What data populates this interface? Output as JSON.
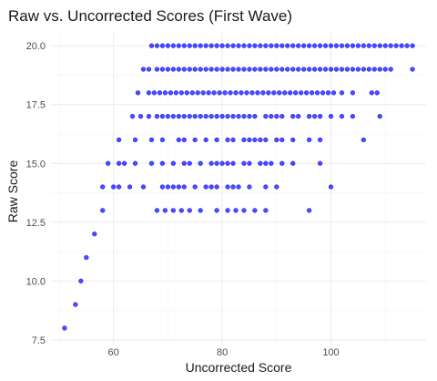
{
  "chart_data": {
    "type": "scatter",
    "title": "Raw vs. Uncorrected Scores (First Wave)",
    "xlabel": "Uncorrected Score",
    "ylabel": "Raw Score",
    "xlim": [
      48.5,
      117.5
    ],
    "ylim": [
      7.3,
      20.55
    ],
    "x_ticks": [
      60,
      80,
      100
    ],
    "y_ticks": [
      7.5,
      10.0,
      12.5,
      15.0,
      17.5,
      20.0
    ],
    "y_tick_labels": [
      "7.5",
      "10.0",
      "12.5",
      "15.0",
      "17.5",
      "20.0"
    ],
    "grid": true,
    "point_color": "#0000ff",
    "point_opacity": 0.7,
    "rows": [
      {
        "y": 8,
        "x": [
          51
        ]
      },
      {
        "y": 9,
        "x": [
          53
        ]
      },
      {
        "y": 10,
        "x": [
          54
        ]
      },
      {
        "y": 11,
        "x": [
          55
        ]
      },
      {
        "y": 12,
        "x": [
          56.5
        ]
      },
      {
        "y": 13,
        "x": [
          58,
          68,
          69.5,
          71,
          72.5,
          74,
          76,
          79,
          81,
          82.5,
          84,
          86,
          88,
          96
        ]
      },
      {
        "y": 14,
        "x": [
          58,
          60,
          61,
          63,
          65.5,
          69,
          70,
          71,
          72,
          73,
          75,
          77,
          78,
          79,
          81,
          82,
          83,
          85,
          88,
          90,
          100
        ]
      },
      {
        "y": 15,
        "x": [
          59,
          61,
          62,
          64,
          67,
          69,
          71,
          73,
          74,
          76,
          78,
          79,
          80,
          81,
          82,
          84,
          85,
          87,
          88,
          89,
          91,
          93,
          98
        ]
      },
      {
        "y": 16,
        "x": [
          61,
          64,
          67,
          69,
          72,
          73,
          75,
          77,
          79,
          81,
          82,
          84,
          85,
          86,
          87,
          88,
          90,
          91,
          93,
          96,
          98,
          106
        ]
      },
      {
        "y": 17,
        "x": [
          63.5,
          65,
          66.5,
          68,
          69,
          70,
          71,
          72,
          73,
          74,
          75,
          76,
          77,
          78,
          79,
          80,
          81,
          82,
          83,
          84,
          85,
          86,
          88,
          89,
          90,
          91,
          93,
          94,
          96,
          97,
          98,
          100,
          102,
          104,
          109
        ]
      },
      {
        "y": 18,
        "x": [
          64.5,
          66.5,
          67.5,
          68.5,
          69.5,
          70.5,
          71.5,
          72.5,
          73.5,
          74.5,
          75.5,
          76.5,
          77.5,
          78.5,
          79.5,
          80.5,
          81.5,
          82.5,
          83.5,
          84.5,
          85.5,
          86.5,
          87.5,
          88.5,
          89.5,
          90.5,
          91.5,
          92.5,
          93.5,
          94.5,
          95.5,
          96.5,
          97.5,
          98.5,
          99.5,
          100.5,
          102,
          104,
          107.5,
          108.5
        ]
      },
      {
        "y": 19,
        "x": [
          65.5,
          66.5,
          68,
          69,
          70,
          71,
          72,
          73,
          74,
          75,
          76,
          77,
          78,
          79,
          80,
          81,
          82,
          83,
          84,
          85,
          86,
          87,
          88,
          89,
          90,
          91,
          92,
          93,
          94,
          95,
          96,
          97,
          98,
          99,
          100,
          101,
          102,
          103,
          104,
          105,
          106,
          107,
          108,
          109,
          110,
          111,
          115
        ]
      },
      {
        "y": 20,
        "x": [
          67,
          68,
          69,
          70,
          71,
          72,
          73,
          74,
          75,
          76,
          77,
          78,
          79,
          80,
          81,
          82,
          83,
          84,
          85,
          86,
          87,
          88,
          89,
          90,
          91,
          92,
          93,
          94,
          95,
          96,
          97,
          98,
          99,
          100,
          101,
          102,
          103,
          104,
          105,
          106,
          107,
          108,
          109,
          110,
          111,
          112,
          113,
          114,
          115
        ]
      }
    ]
  }
}
